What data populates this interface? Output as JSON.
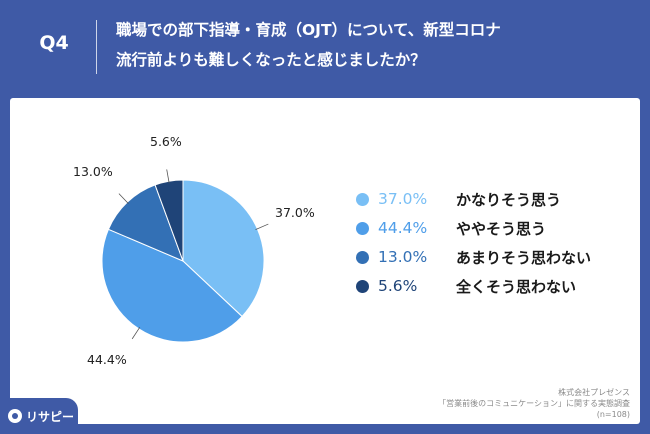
{
  "header": {
    "qnum": "Q4",
    "question_line1": "職場での部下指導・育成（OJT）について、新型コロナ",
    "question_line2": "流行前よりも難しくなったと感じましたか？"
  },
  "chart_data": {
    "type": "pie",
    "categories": [
      "かなりそう思う",
      "ややそう思う",
      "あまりそう思わない",
      "全くそう思わない"
    ],
    "values": [
      37.0,
      44.4,
      13.0,
      5.6
    ],
    "labels": [
      "37.0%",
      "44.4%",
      "13.0%",
      "5.6%"
    ],
    "colors": [
      "#79bff5",
      "#4f9ee9",
      "#3370b5",
      "#1f4478"
    ],
    "start": "12 o'clock, clockwise",
    "legend_position": "right"
  },
  "source": {
    "line1": "株式会社プレゼンス",
    "line2": "「営業前後のコミュニケーション」に関する実態調査",
    "line3": "(n=108)"
  },
  "logo": {
    "text": "リサピー"
  }
}
